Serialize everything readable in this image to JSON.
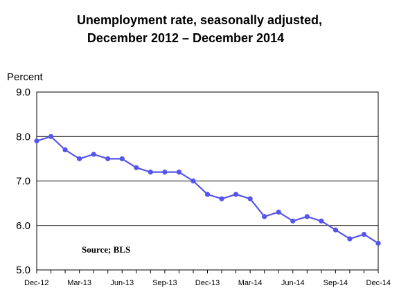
{
  "chart_data": {
    "type": "line",
    "title_line1": "Unemployment rate, seasonally adjusted,",
    "title_line2": "December 2012 – December 2014",
    "ylabel": "Percent",
    "xlabel": "",
    "ylim": [
      5.0,
      9.0
    ],
    "yticks": [
      "9.0",
      "8.0",
      "7.0",
      "6.0",
      "5.0"
    ],
    "ytick_values": [
      9.0,
      8.0,
      7.0,
      6.0,
      5.0
    ],
    "grid": true,
    "x_labels": [
      "Dec-12",
      "Mar-13",
      "Jun-13",
      "Sep-13",
      "Dec-13",
      "Mar-14",
      "Jun-14",
      "Sep-14",
      "Dec-14"
    ],
    "x_label_months": [
      0,
      3,
      6,
      9,
      12,
      15,
      18,
      21,
      24
    ],
    "annotation": "Source;  BLS",
    "line_color": "#5555ee",
    "series": [
      {
        "x": [
          "Dec-12",
          "Jan-13",
          "Feb-13",
          "Mar-13",
          "Apr-13",
          "May-13",
          "Jun-13",
          "Jul-13",
          "Aug-13",
          "Sep-13",
          "Oct-13",
          "Nov-13",
          "Dec-13",
          "Jan-14",
          "Feb-14",
          "Mar-14",
          "Apr-14",
          "May-14",
          "Jun-14",
          "Jul-14",
          "Aug-14",
          "Sep-14",
          "Oct-14",
          "Nov-14",
          "Dec-14"
        ],
        "values": [
          7.9,
          8.0,
          7.7,
          7.5,
          7.6,
          7.5,
          7.5,
          7.3,
          7.2,
          7.2,
          7.2,
          7.0,
          6.7,
          6.6,
          6.7,
          6.6,
          6.2,
          6.3,
          6.1,
          6.2,
          6.1,
          5.9,
          5.7,
          5.8,
          5.6
        ]
      }
    ]
  }
}
